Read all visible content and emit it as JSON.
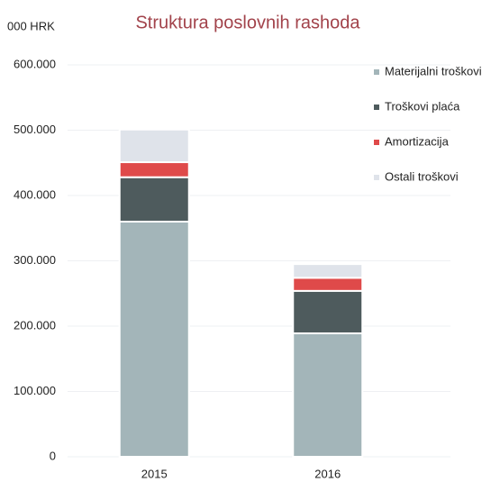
{
  "chart_data": {
    "type": "stacked_bar",
    "title": "Struktura poslovnih rashoda",
    "unit_label": "000 HRK",
    "categories": [
      "2015",
      "2016"
    ],
    "series": [
      {
        "name": "Materijalni troškovi",
        "color": "#a3b5b9",
        "values": [
          360000,
          189000
        ]
      },
      {
        "name": "Troškovi plaća",
        "color": "#4e5b5d",
        "values": [
          68000,
          65000
        ]
      },
      {
        "name": "Amortizacija",
        "color": "#df4a4a",
        "values": [
          23000,
          20000
        ]
      },
      {
        "name": "Ostali troškovi",
        "color": "#dfe3ea",
        "values": [
          50000,
          21000
        ]
      }
    ],
    "ylim": [
      0,
      600000
    ],
    "yticks": [
      0,
      {
        "value": 100000,
        "label": "100.000"
      },
      {
        "value": 200000,
        "label": "200.000"
      },
      {
        "value": 300000,
        "label": "300.000"
      },
      {
        "value": 400000,
        "label": "400.000"
      },
      {
        "value": 500000,
        "label": "500.000"
      },
      {
        "value": 600000,
        "label": "600.000"
      }
    ],
    "grid": true,
    "legend": "right"
  }
}
